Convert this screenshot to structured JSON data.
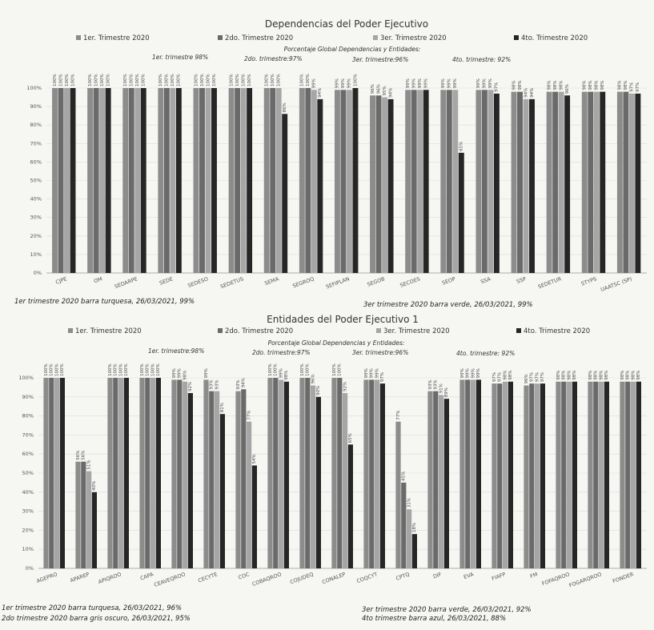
{
  "chart_data": [
    {
      "type": "bar",
      "title": "Dependencias del Poder Ejecutivo",
      "legend": [
        "1er. Trimestre 2020",
        "2do. Trimestre 2020",
        "3er. Trimestre 2020",
        "4to. Trimestre 2020"
      ],
      "global_title": "Porcentaje Global Dependencias y Entidades:",
      "global": [
        "1er. trimestre 98%",
        "2do. trimestre:97%",
        "3er. trimestre:96%",
        "4to. trimestre: 92%"
      ],
      "ylim": [
        0,
        100
      ],
      "yticks": [
        "0%",
        "10%",
        "20%",
        "30%",
        "40%",
        "50%",
        "60%",
        "70%",
        "80%",
        "90%",
        "100%"
      ],
      "categories": [
        "CJPE",
        "OM",
        "SEDARPE",
        "SEDE",
        "SEDESO",
        "SEDETUS",
        "SEMA",
        "SEGROQ",
        "SEFIPLAN",
        "SEGOB",
        "SECOES",
        "SEOP",
        "SSA",
        "SSP",
        "SEDETUR",
        "STYPS",
        "UAATSC (SP)"
      ],
      "series": [
        {
          "name": "1er. Trimestre 2020",
          "values": [
            100,
            100,
            100,
            100,
            100,
            100,
            100,
            100,
            99,
            96,
            99,
            99,
            99,
            98,
            98,
            98,
            98
          ]
        },
        {
          "name": "2do. Trimestre 2020",
          "values": [
            100,
            100,
            100,
            100,
            100,
            100,
            100,
            100,
            99,
            96,
            99,
            99,
            99,
            98,
            98,
            98,
            98
          ]
        },
        {
          "name": "3er. Trimestre 2020",
          "values": [
            100,
            100,
            100,
            100,
            100,
            100,
            100,
            99,
            99,
            95,
            99,
            99,
            99,
            94,
            98,
            98,
            97
          ]
        },
        {
          "name": "4to. Trimestre 2020",
          "values": [
            100,
            100,
            100,
            100,
            100,
            100,
            86,
            94,
            100,
            94,
            99,
            65,
            97,
            94,
            96,
            98,
            97
          ]
        }
      ],
      "notes": [
        "1er trimestre 2020 barra turquesa, 26/03/2021, 99%",
        "3er trimestre 2020 barra verde, 26/03/2021, 99%"
      ]
    },
    {
      "type": "bar",
      "title": "Entidades del Poder Ejecutivo 1",
      "legend": [
        "1er. Trimestre 2020",
        "2do. Trimestre 2020",
        "3er. Trimestre 2020",
        "4to. Trimestre 2020"
      ],
      "global_title": "Porcentaje Global Dependencias y Entidades:",
      "global": [
        "1er. trimestre:98%",
        "2do. trimestre:97%",
        "3er. trimestre:96%",
        "4to. trimestre: 92%"
      ],
      "ylim": [
        0,
        100
      ],
      "yticks": [
        "0%",
        "10%",
        "20%",
        "30%",
        "40%",
        "50%",
        "60%",
        "70%",
        "80%",
        "90%",
        "100%"
      ],
      "categories": [
        "AGEPRO",
        "APAREP",
        "APIQROO",
        "CAPA",
        "CEAVEQROO",
        "CECYTE",
        "COC",
        "COBAQROO",
        "COJUDEQ",
        "CONALEP",
        "COQCYT",
        "CPTQ",
        "DIF",
        "EVA",
        "FIAFP",
        "FM",
        "FOFAQROO",
        "FOGARQROO",
        "FONDER"
      ],
      "series": [
        {
          "name": "1er. Trimestre 2020",
          "values": [
            100,
            56,
            100,
            100,
            99,
            99,
            93,
            100,
            100,
            100,
            99,
            77,
            93,
            99,
            97,
            96,
            98,
            98,
            98
          ]
        },
        {
          "name": "2do. Trimestre 2020",
          "values": [
            100,
            56,
            100,
            100,
            99,
            93,
            94,
            100,
            100,
            100,
            99,
            45,
            93,
            99,
            97,
            97,
            98,
            98,
            98
          ]
        },
        {
          "name": "3er. Trimestre 2020",
          "values": [
            100,
            51,
            100,
            100,
            98,
            93,
            77,
            99,
            96,
            92,
            99,
            31,
            91,
            99,
            98,
            97,
            98,
            98,
            98
          ]
        },
        {
          "name": "4to. Trimestre 2020",
          "values": [
            100,
            40,
            100,
            100,
            92,
            81,
            54,
            98,
            90,
            65,
            97,
            18,
            89,
            99,
            98,
            97,
            98,
            98,
            98
          ]
        }
      ],
      "notes": [
        "1er trimestre 2020 barra turquesa, 26/03/2021, 96%",
        "2do trimestre 2020 barra gris oscuro, 26/03/2021, 95%",
        "3er trimestre 2020 barra verde, 26/03/2021, 92%",
        "4to trimestre barra azul, 26/03/2021, 88%"
      ]
    }
  ]
}
